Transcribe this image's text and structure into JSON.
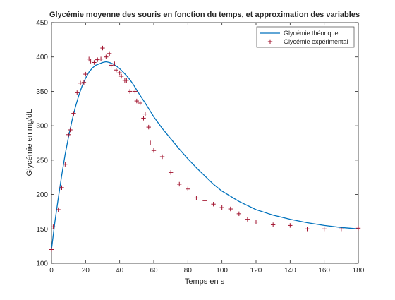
{
  "chart_data": {
    "type": "line",
    "title": "Glycémie moyenne des souris en fonction du temps, et approximation des variables",
    "xlabel": "Temps en s",
    "ylabel": "Glycémie en mg/dL",
    "xlim": [
      0,
      180
    ],
    "ylim": [
      100,
      450
    ],
    "xticks": [
      "0",
      "20",
      "40",
      "60",
      "80",
      "100",
      "120",
      "140",
      "160",
      "180"
    ],
    "yticks": [
      "100",
      "150",
      "200",
      "250",
      "300",
      "350",
      "400",
      "450"
    ],
    "grid": false,
    "legend_position": "top-right",
    "colors": {
      "theoretical": "#0072bd",
      "experimental": "#a2142f",
      "axis": "#262626"
    },
    "series": [
      {
        "name": "Glycémie théorique",
        "style": "line",
        "x": [
          0,
          2,
          4,
          6,
          8,
          10,
          12,
          14,
          16,
          18,
          20,
          22,
          24,
          26,
          28,
          30,
          32,
          34,
          36,
          38,
          40,
          42,
          44,
          46,
          48,
          50,
          52,
          55,
          58,
          60,
          65,
          70,
          75,
          80,
          85,
          90,
          95,
          100,
          110,
          120,
          130,
          140,
          150,
          160,
          170,
          180
        ],
        "y": [
          120,
          160,
          195,
          228,
          258,
          284,
          307,
          327,
          344,
          358,
          369,
          378,
          384,
          388,
          390,
          392,
          393,
          392,
          390,
          387,
          383,
          378,
          373,
          367,
          360,
          352,
          344,
          333,
          321,
          313,
          296,
          281,
          266,
          252,
          239,
          227,
          215,
          205,
          190,
          178,
          170,
          164,
          159,
          155,
          152,
          150
        ]
      },
      {
        "name": "Glycémie expérimental",
        "style": "markers",
        "x": [
          0,
          1,
          4,
          6,
          8,
          10,
          11,
          13,
          15,
          17,
          19,
          20,
          22,
          23,
          25,
          27,
          29,
          30,
          32,
          34,
          35,
          37,
          38,
          40,
          41,
          43,
          44,
          46,
          49,
          50,
          52,
          54,
          55,
          57,
          58,
          60,
          65,
          70,
          75,
          80,
          85,
          90,
          95,
          100,
          105,
          110,
          115,
          120,
          130,
          140,
          150,
          160,
          170,
          180
        ],
        "y": [
          120,
          153,
          178,
          210,
          244,
          287,
          294,
          318,
          348,
          362,
          363,
          375,
          397,
          394,
          392,
          396,
          397,
          413,
          400,
          405,
          388,
          390,
          381,
          377,
          372,
          366,
          366,
          350,
          350,
          336,
          333,
          311,
          317,
          298,
          275,
          264,
          255,
          232,
          215,
          208,
          195,
          191,
          186,
          181,
          179,
          172,
          164,
          160,
          156,
          155,
          150,
          150,
          150,
          151
        ]
      }
    ]
  }
}
